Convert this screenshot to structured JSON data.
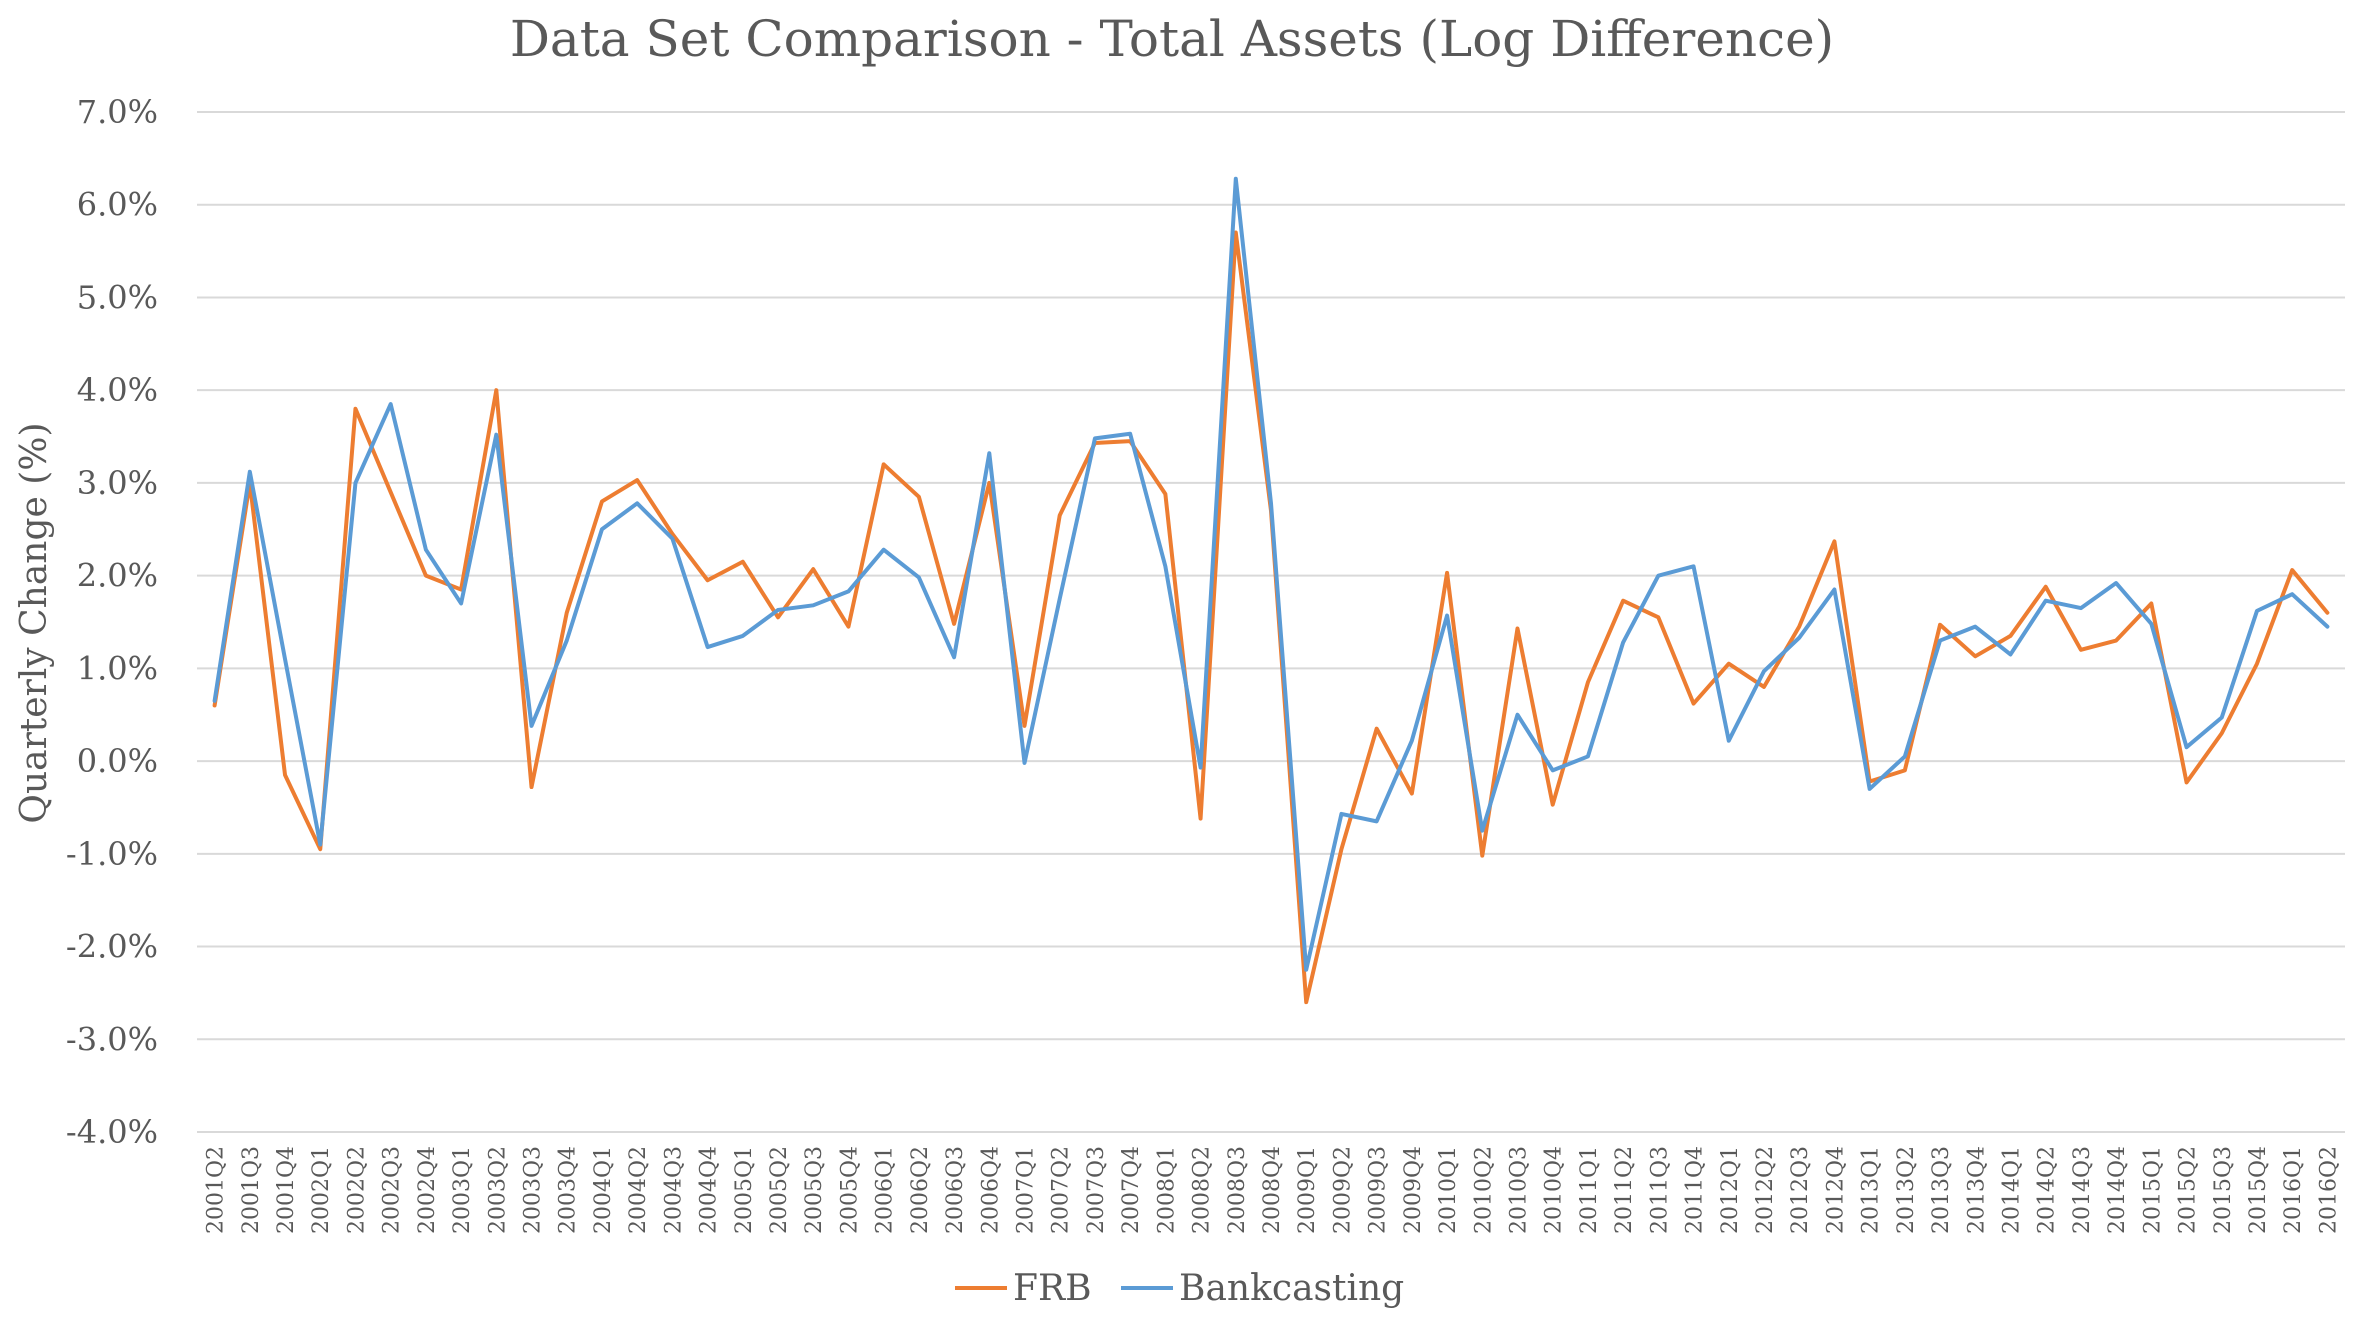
{
  "chart_data": {
    "type": "line",
    "title": "Data Set Comparison - Total Assets (Log Difference)",
    "xlabel": "",
    "ylabel": "Quarterly Change (%)",
    "ylim": [
      -4.0,
      7.0
    ],
    "yticks": [
      7.0,
      6.0,
      5.0,
      4.0,
      3.0,
      2.0,
      1.0,
      0.0,
      -1.0,
      -2.0,
      -3.0,
      -4.0
    ],
    "ytick_labels": [
      "7.0%",
      "6.0%",
      "5.0%",
      "4.0%",
      "3.0%",
      "2.0%",
      "1.0%",
      "0.0%",
      "-1.0%",
      "-2.0%",
      "-3.0%",
      "-4.0%"
    ],
    "grid": true,
    "legend_position": "bottom",
    "categories": [
      "2001Q2",
      "2001Q3",
      "2001Q4",
      "2002Q1",
      "2002Q2",
      "2002Q3",
      "2002Q4",
      "2003Q1",
      "2003Q2",
      "2003Q3",
      "2003Q4",
      "2004Q1",
      "2004Q2",
      "2004Q3",
      "2004Q4",
      "2005Q1",
      "2005Q2",
      "2005Q3",
      "2005Q4",
      "2006Q1",
      "2006Q2",
      "2006Q3",
      "2006Q4",
      "2007Q1",
      "2007Q2",
      "2007Q3",
      "2007Q4",
      "2008Q1",
      "2008Q2",
      "2008Q3",
      "2008Q4",
      "2009Q1",
      "2009Q2",
      "2009Q3",
      "2009Q4",
      "2010Q1",
      "2010Q2",
      "2010Q3",
      "2010Q4",
      "2011Q1",
      "2011Q2",
      "2011Q3",
      "2011Q4",
      "2012Q1",
      "2012Q2",
      "2012Q3",
      "2012Q4",
      "2013Q1",
      "2013Q2",
      "2013Q3",
      "2013Q4",
      "2014Q1",
      "2014Q2",
      "2014Q3",
      "2014Q4",
      "2015Q1",
      "2015Q2",
      "2015Q3",
      "2015Q4",
      "2016Q1",
      "2016Q2"
    ],
    "series": [
      {
        "name": "FRB",
        "color": "#ed7d31",
        "values": [
          0.6,
          3.0,
          -0.15,
          -0.95,
          3.8,
          2.9,
          2.0,
          1.85,
          4.0,
          -0.28,
          1.6,
          2.8,
          3.03,
          2.45,
          1.95,
          2.15,
          1.55,
          2.07,
          1.45,
          3.2,
          2.85,
          1.48,
          3.0,
          0.38,
          2.65,
          3.43,
          3.45,
          2.88,
          -0.62,
          5.7,
          2.7,
          -2.6,
          -0.95,
          0.35,
          -0.35,
          2.03,
          -1.02,
          1.43,
          -0.47,
          0.85,
          1.73,
          1.55,
          0.62,
          1.05,
          0.8,
          1.45,
          2.37,
          -0.22,
          -0.1,
          1.47,
          1.13,
          1.35,
          1.88,
          1.2,
          1.3,
          1.7,
          -0.23,
          0.3,
          1.05,
          2.06,
          1.6
        ]
      },
      {
        "name": "Bankcasting",
        "color": "#5b9bd5",
        "values": [
          0.65,
          3.12,
          1.1,
          -0.9,
          3.0,
          3.85,
          2.28,
          1.7,
          3.52,
          0.38,
          1.3,
          2.5,
          2.78,
          2.4,
          1.23,
          1.35,
          1.63,
          1.68,
          1.83,
          2.28,
          1.98,
          1.12,
          3.32,
          -0.02,
          1.75,
          3.48,
          3.53,
          2.1,
          -0.07,
          6.28,
          2.78,
          -2.25,
          -0.57,
          -0.65,
          0.22,
          1.57,
          -0.75,
          0.5,
          -0.1,
          0.05,
          1.28,
          2.0,
          2.1,
          0.22,
          0.97,
          1.33,
          1.85,
          -0.3,
          0.05,
          1.3,
          1.45,
          1.15,
          1.73,
          1.65,
          1.92,
          1.48,
          0.15,
          0.47,
          1.62,
          1.8,
          1.45
        ]
      }
    ]
  }
}
